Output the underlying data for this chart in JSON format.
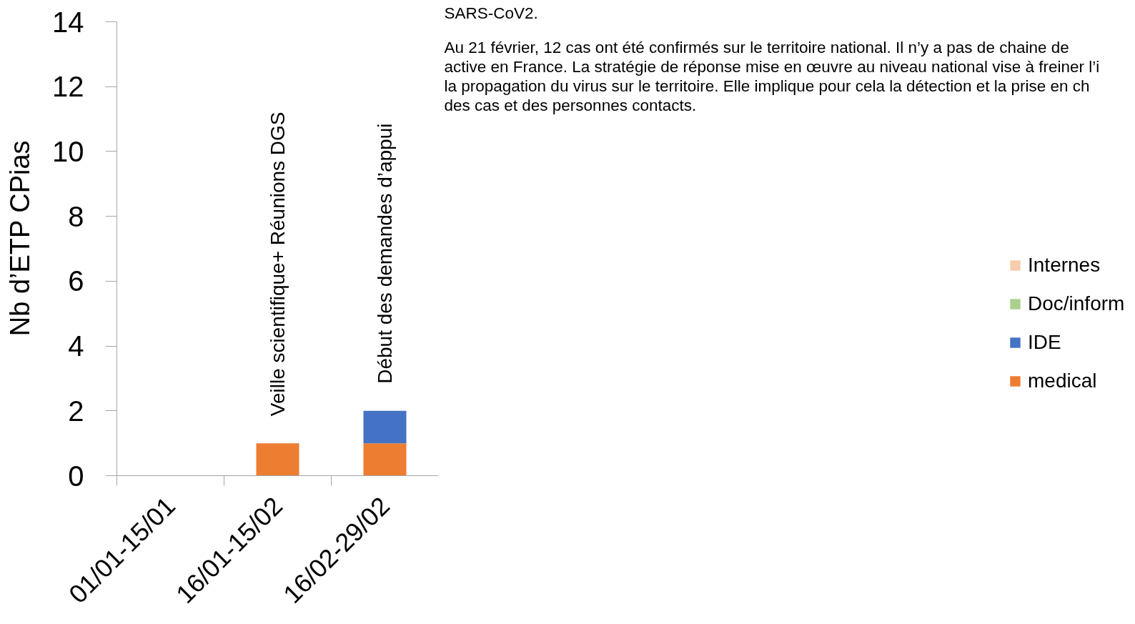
{
  "chart_data": {
    "type": "bar",
    "stacked": true,
    "ylabel": "Nb d’ETP CPias",
    "categories": [
      "01/01-15/01",
      "16/01-15/02",
      "16/02-29/02"
    ],
    "series": [
      {
        "name": "medical",
        "color": "#ed7d31",
        "values": [
          null,
          1,
          1
        ]
      },
      {
        "name": "IDE",
        "color": "#4472c4",
        "values": [
          null,
          null,
          1
        ]
      },
      {
        "name": "Doc/inform",
        "color": "#a9d18e",
        "values": [
          null,
          null,
          null
        ]
      },
      {
        "name": "Internes",
        "color": "#f8cbad",
        "values": [
          null,
          null,
          null
        ]
      }
    ],
    "ylim": [
      0,
      14
    ],
    "yticks": [
      0,
      2,
      4,
      6,
      8,
      10,
      12,
      14
    ],
    "legend": "right",
    "annotations": [
      {
        "text": "Veille scientifique+ Réunions DGS",
        "x": "16/01-15/02",
        "y": 1
      },
      {
        "text": "Début des demandes d’appui",
        "x": "16/02-29/02",
        "y": 2
      },
      "SARS-CoV2.",
      "Au 21 février, 12 cas ont été confirmés sur le territoire national. Il n’y a pas de chaine de",
      "active en France. La stratégie de réponse mise en œuvre au niveau national vise à freiner l’i",
      "la propagation du virus sur le territoire. Elle implique pour cela la détection et la prise en ch",
      "des cas et des personnes contacts."
    ]
  }
}
